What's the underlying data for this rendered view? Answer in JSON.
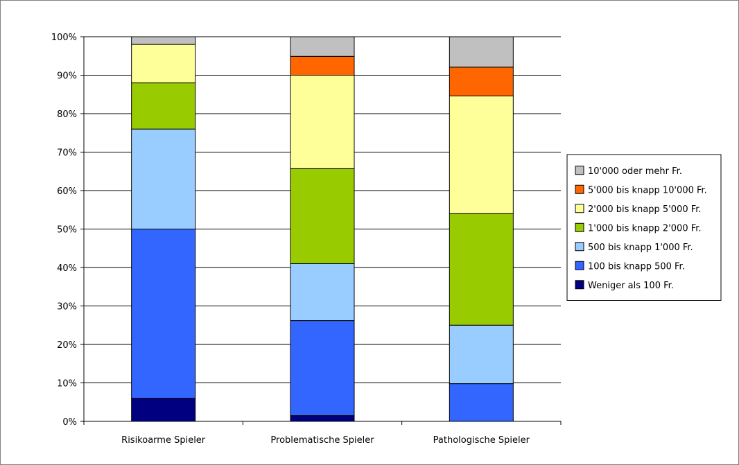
{
  "chart_data": {
    "type": "bar",
    "stacked": true,
    "percent_stacked": true,
    "title": "",
    "xlabel": "",
    "ylabel": "",
    "ylim": [
      0,
      100
    ],
    "y_ticks": [
      "0%",
      "10%",
      "20%",
      "30%",
      "40%",
      "50%",
      "60%",
      "70%",
      "80%",
      "90%",
      "100%"
    ],
    "grid": true,
    "legend_position": "right",
    "categories": [
      "Risikoarme Spieler",
      "Problematische Spieler",
      "Pathologische Spieler"
    ],
    "series": [
      {
        "name": "Weniger als 100 Fr.",
        "color": "#000080",
        "values": [
          6,
          1.5,
          0
        ]
      },
      {
        "name": "100 bis knapp 500 Fr.",
        "color": "#3366ff",
        "values": [
          44,
          24.7,
          9.8
        ]
      },
      {
        "name": "500 bis knapp 1'000 Fr.",
        "color": "#99ccff",
        "values": [
          26,
          14.8,
          15.2
        ]
      },
      {
        "name": "1'000 bis knapp 2'000 Fr.",
        "color": "#99cc00",
        "values": [
          12,
          24.7,
          29
        ]
      },
      {
        "name": "2'000 bis knapp 5'000 Fr.",
        "color": "#ffff99",
        "values": [
          10,
          24.3,
          30.6
        ]
      },
      {
        "name": "5'000 bis knapp 10'000 Fr.",
        "color": "#ff6600",
        "values": [
          0,
          4.9,
          7.5
        ]
      },
      {
        "name": "10'000 oder mehr Fr.",
        "color": "#c0c0c0",
        "values": [
          2,
          5.1,
          7.9
        ]
      }
    ]
  }
}
